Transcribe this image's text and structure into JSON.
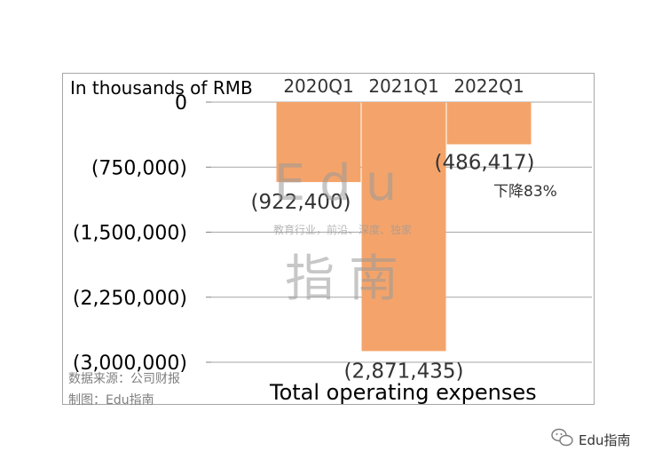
{
  "chart_data": {
    "type": "bar",
    "title": "",
    "unit_label": "In thousands of RMB",
    "xlabel": "Total operating expenses",
    "ylabel": "",
    "categories": [
      "2020Q1",
      "2021Q1",
      "2022Q1"
    ],
    "values": [
      -922400,
      -2871435,
      -486417
    ],
    "value_labels": [
      "(922,400)",
      "(2,871,435)",
      "(486,417)"
    ],
    "ylim": [
      -3000000,
      0
    ],
    "yticks": [
      0,
      -750000,
      -1500000,
      -2250000,
      -3000000
    ],
    "ytick_labels": [
      "0",
      "(750,000)",
      "(1,500,000)",
      "(2,250,000)",
      "(3,000,000)"
    ],
    "annotation": "下降83%",
    "grid": true,
    "bar_color": "#f4a46a"
  },
  "source": {
    "line1": "数据来源：公司财报",
    "line2": "制图：Edu指南"
  },
  "watermark": {
    "big1": "Edu",
    "small": "教育行业，前沿、深度、独家",
    "big2": "指南"
  },
  "brand": {
    "icon": "wechat-icon",
    "name": "Edu指南"
  }
}
